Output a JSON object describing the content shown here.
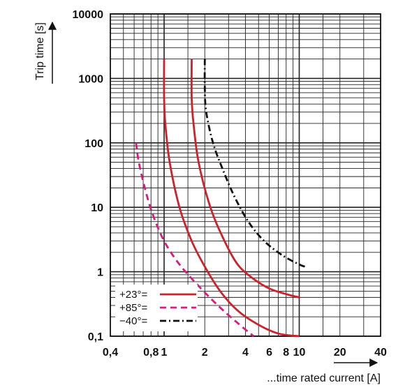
{
  "chart_data": {
    "type": "line",
    "title": "",
    "xlabel": "...time rated current [A]",
    "ylabel": "Trip time [s]",
    "xscale": "log",
    "yscale": "log",
    "xlim": [
      0.4,
      40
    ],
    "ylim": [
      0.1,
      10000
    ],
    "grid": true,
    "legend_position": "bottom-left",
    "x_tick_labels": [
      "0,4",
      "0,8",
      "1",
      "2",
      "4",
      "6",
      "8",
      "10",
      "20",
      "40"
    ],
    "x_ticks": [
      0.4,
      0.8,
      1,
      2,
      4,
      6,
      8,
      10,
      20,
      40
    ],
    "y_tick_labels": [
      "0,1",
      "1",
      "10",
      "100",
      "1000",
      "10000"
    ],
    "y_ticks": [
      0.1,
      1,
      10,
      100,
      1000,
      10000
    ],
    "series": [
      {
        "name": "+23°=",
        "color": "#d0202a",
        "dash": "solid",
        "values": [
          [
            1.0,
            2000
          ],
          [
            1.0,
            500
          ],
          [
            1.02,
            200
          ],
          [
            1.1,
            50
          ],
          [
            1.3,
            10
          ],
          [
            1.6,
            3
          ],
          [
            2.0,
            1.2
          ],
          [
            2.6,
            0.5
          ],
          [
            3.5,
            0.25
          ],
          [
            5.0,
            0.15
          ],
          [
            7.0,
            0.11
          ],
          [
            10.0,
            0.1
          ]
        ]
      },
      {
        "name": "+23°=",
        "color": "#d0202a",
        "dash": "solid",
        "values": [
          [
            1.6,
            2000
          ],
          [
            1.6,
            500
          ],
          [
            1.65,
            200
          ],
          [
            1.8,
            50
          ],
          [
            2.2,
            10
          ],
          [
            2.8,
            3
          ],
          [
            3.5,
            1.3
          ],
          [
            4.5,
            0.8
          ],
          [
            6.0,
            0.55
          ],
          [
            8.0,
            0.45
          ],
          [
            10.0,
            0.4
          ]
        ]
      },
      {
        "name": "−40°=",
        "color": "#111111",
        "dash": "dash-dot",
        "values": [
          [
            2.0,
            2000
          ],
          [
            2.0,
            700
          ],
          [
            2.05,
            300
          ],
          [
            2.3,
            100
          ],
          [
            2.7,
            40
          ],
          [
            3.3,
            15
          ],
          [
            4.2,
            6
          ],
          [
            5.5,
            3
          ],
          [
            7.5,
            1.8
          ],
          [
            10.0,
            1.3
          ],
          [
            11.0,
            1.2
          ]
        ]
      },
      {
        "name": "+85°=",
        "color": "#d81b7f",
        "dash": "dashed",
        "values": [
          [
            0.62,
            100
          ],
          [
            0.65,
            50
          ],
          [
            0.72,
            20
          ],
          [
            0.82,
            8
          ],
          [
            1.0,
            3
          ],
          [
            1.3,
            1.3
          ],
          [
            1.8,
            0.6
          ],
          [
            2.5,
            0.3
          ],
          [
            3.5,
            0.16
          ],
          [
            4.6,
            0.1
          ]
        ]
      }
    ],
    "legend": [
      {
        "label": "+23°=",
        "color": "#d0202a",
        "dash": "solid"
      },
      {
        "label": "+85°=",
        "color": "#d81b7f",
        "dash": "dashed"
      },
      {
        "label": "−40°=",
        "color": "#111111",
        "dash": "dash-dot"
      }
    ]
  }
}
